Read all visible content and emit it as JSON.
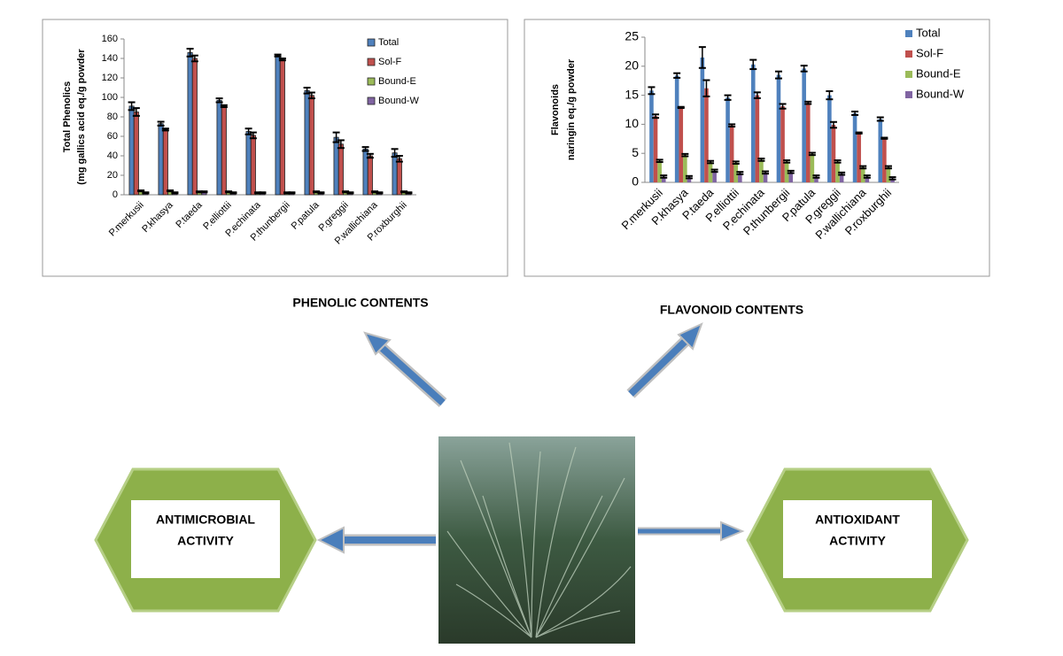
{
  "chart_data": [
    {
      "type": "bar",
      "caption": "PHENOLIC CONTENTS",
      "ylabel": [
        "Total Phenolics",
        "(mg gallics acid eq./g powder"
      ],
      "categories": [
        "P.merkusii",
        "P.khasya",
        "P.taeda",
        "P.elliottii",
        "P.echinata",
        "P.thunbergii",
        "P.patula",
        "P.greggii",
        "P.wallichiana",
        "P.roxburghii"
      ],
      "series": [
        {
          "name": "Total",
          "color": "#4f81bd",
          "values": [
            91,
            73,
            146,
            97,
            65,
            143,
            107,
            59,
            47,
            43
          ],
          "errors": [
            4,
            2,
            4,
            2,
            3,
            1,
            3,
            5,
            2,
            4
          ]
        },
        {
          "name": "Sol-F",
          "color": "#c0504d",
          "values": [
            85,
            67,
            140,
            91,
            61,
            139,
            102,
            52,
            40,
            37
          ],
          "errors": [
            4,
            1,
            3,
            1,
            3,
            1,
            3,
            4,
            2,
            3
          ]
        },
        {
          "name": "Bound-E",
          "color": "#9bbb59",
          "values": [
            4,
            4,
            3,
            3,
            2,
            2,
            3,
            3,
            3,
            3
          ],
          "errors": [
            0.5,
            0.5,
            0.5,
            0.5,
            0.5,
            0.5,
            0.5,
            0.5,
            0.5,
            0.5
          ]
        },
        {
          "name": "Bound-W",
          "color": "#8064a2",
          "values": [
            2,
            2,
            3,
            2,
            2,
            2,
            2,
            2,
            2,
            2
          ],
          "errors": [
            0.5,
            0.5,
            0.5,
            0.5,
            0.5,
            0.5,
            0.5,
            0.5,
            0.5,
            0.5
          ]
        }
      ],
      "ylim": [
        0,
        160
      ],
      "yticks": [
        0,
        20,
        40,
        60,
        80,
        100,
        120,
        140,
        160
      ],
      "grid": false,
      "legend": "top-right",
      "bar_outline": true
    },
    {
      "type": "bar",
      "caption": "FLAVONOID CONTENTS",
      "ylabel": [
        "Flavonoids",
        "naringin eq./g powder"
      ],
      "categories": [
        "P.merkusii",
        "P.khasya",
        "P.taeda",
        "P.elliottii",
        "P.echinata",
        "P.thunbergii",
        "P.patula",
        "P.greggii",
        "P.wallichiana",
        "P.roxburghii"
      ],
      "series": [
        {
          "name": "Total",
          "color": "#4f81bd",
          "values": [
            15.8,
            18.4,
            21.5,
            14.6,
            20.3,
            18.5,
            19.6,
            15.0,
            11.9,
            10.9
          ],
          "errors": [
            0.6,
            0.4,
            1.8,
            0.4,
            0.8,
            0.6,
            0.5,
            0.7,
            0.3,
            0.3
          ]
        },
        {
          "name": "Sol-F",
          "color": "#c0504d",
          "values": [
            11.4,
            12.9,
            16.2,
            9.8,
            15.0,
            13.1,
            13.7,
            9.9,
            8.5,
            7.6
          ],
          "errors": [
            0.3,
            0.1,
            1.4,
            0.2,
            0.5,
            0.4,
            0.2,
            0.5,
            0.1,
            0.1
          ]
        },
        {
          "name": "Bound-E",
          "color": "#9bbb59",
          "values": [
            3.7,
            4.7,
            3.5,
            3.4,
            3.9,
            3.6,
            4.9,
            3.6,
            2.6,
            2.6
          ],
          "errors": [
            0.2,
            0.2,
            0.2,
            0.2,
            0.2,
            0.2,
            0.2,
            0.2,
            0.2,
            0.2
          ]
        },
        {
          "name": "Bound-W",
          "color": "#8064a2",
          "values": [
            1.0,
            0.9,
            2.0,
            1.6,
            1.7,
            1.8,
            1.0,
            1.5,
            1.0,
            0.7
          ],
          "errors": [
            0.2,
            0.2,
            0.2,
            0.2,
            0.2,
            0.2,
            0.2,
            0.2,
            0.2,
            0.2
          ]
        }
      ],
      "ylim": [
        0,
        25
      ],
      "yticks": [
        0,
        5,
        10,
        15,
        20,
        25
      ],
      "grid": false,
      "legend": "top-right",
      "bar_outline": false
    }
  ],
  "hexagons": [
    {
      "lines": [
        "ANTIMICROBIAL",
        "ACTIVITY"
      ]
    },
    {
      "lines": [
        "ANTIOXIDANT",
        "ACTIVITY"
      ]
    }
  ]
}
